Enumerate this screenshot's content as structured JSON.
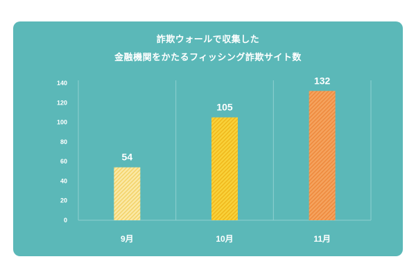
{
  "chart_data": {
    "type": "bar",
    "title": [
      "詐欺ウォールで収集した",
      "金融機関をかたるフィッシング詐欺サイト数"
    ],
    "categories": [
      "9月",
      "10月",
      "11月"
    ],
    "values": [
      54,
      105,
      132
    ],
    "value_labels": [
      "54",
      "105",
      "132"
    ],
    "ylim": [
      0,
      140
    ],
    "yticks": [
      0,
      20,
      40,
      60,
      80,
      100,
      120,
      140
    ],
    "ytick_labels": [
      "0",
      "20",
      "40",
      "60",
      "80",
      "100",
      "120",
      "140"
    ],
    "xlabel": "",
    "ylabel": "",
    "grid": false,
    "colors": {
      "background": "#5bb8b8",
      "bars": [
        {
          "fill": "#fbe9a6",
          "stripe": "#f3d36a"
        },
        {
          "fill": "#f9d23a",
          "stripe": "#f0b81c"
        },
        {
          "fill": "#f5a35e",
          "stripe": "#ee8a3e"
        }
      ],
      "axis": "#8fd0d0",
      "text": "#ffffff"
    }
  }
}
